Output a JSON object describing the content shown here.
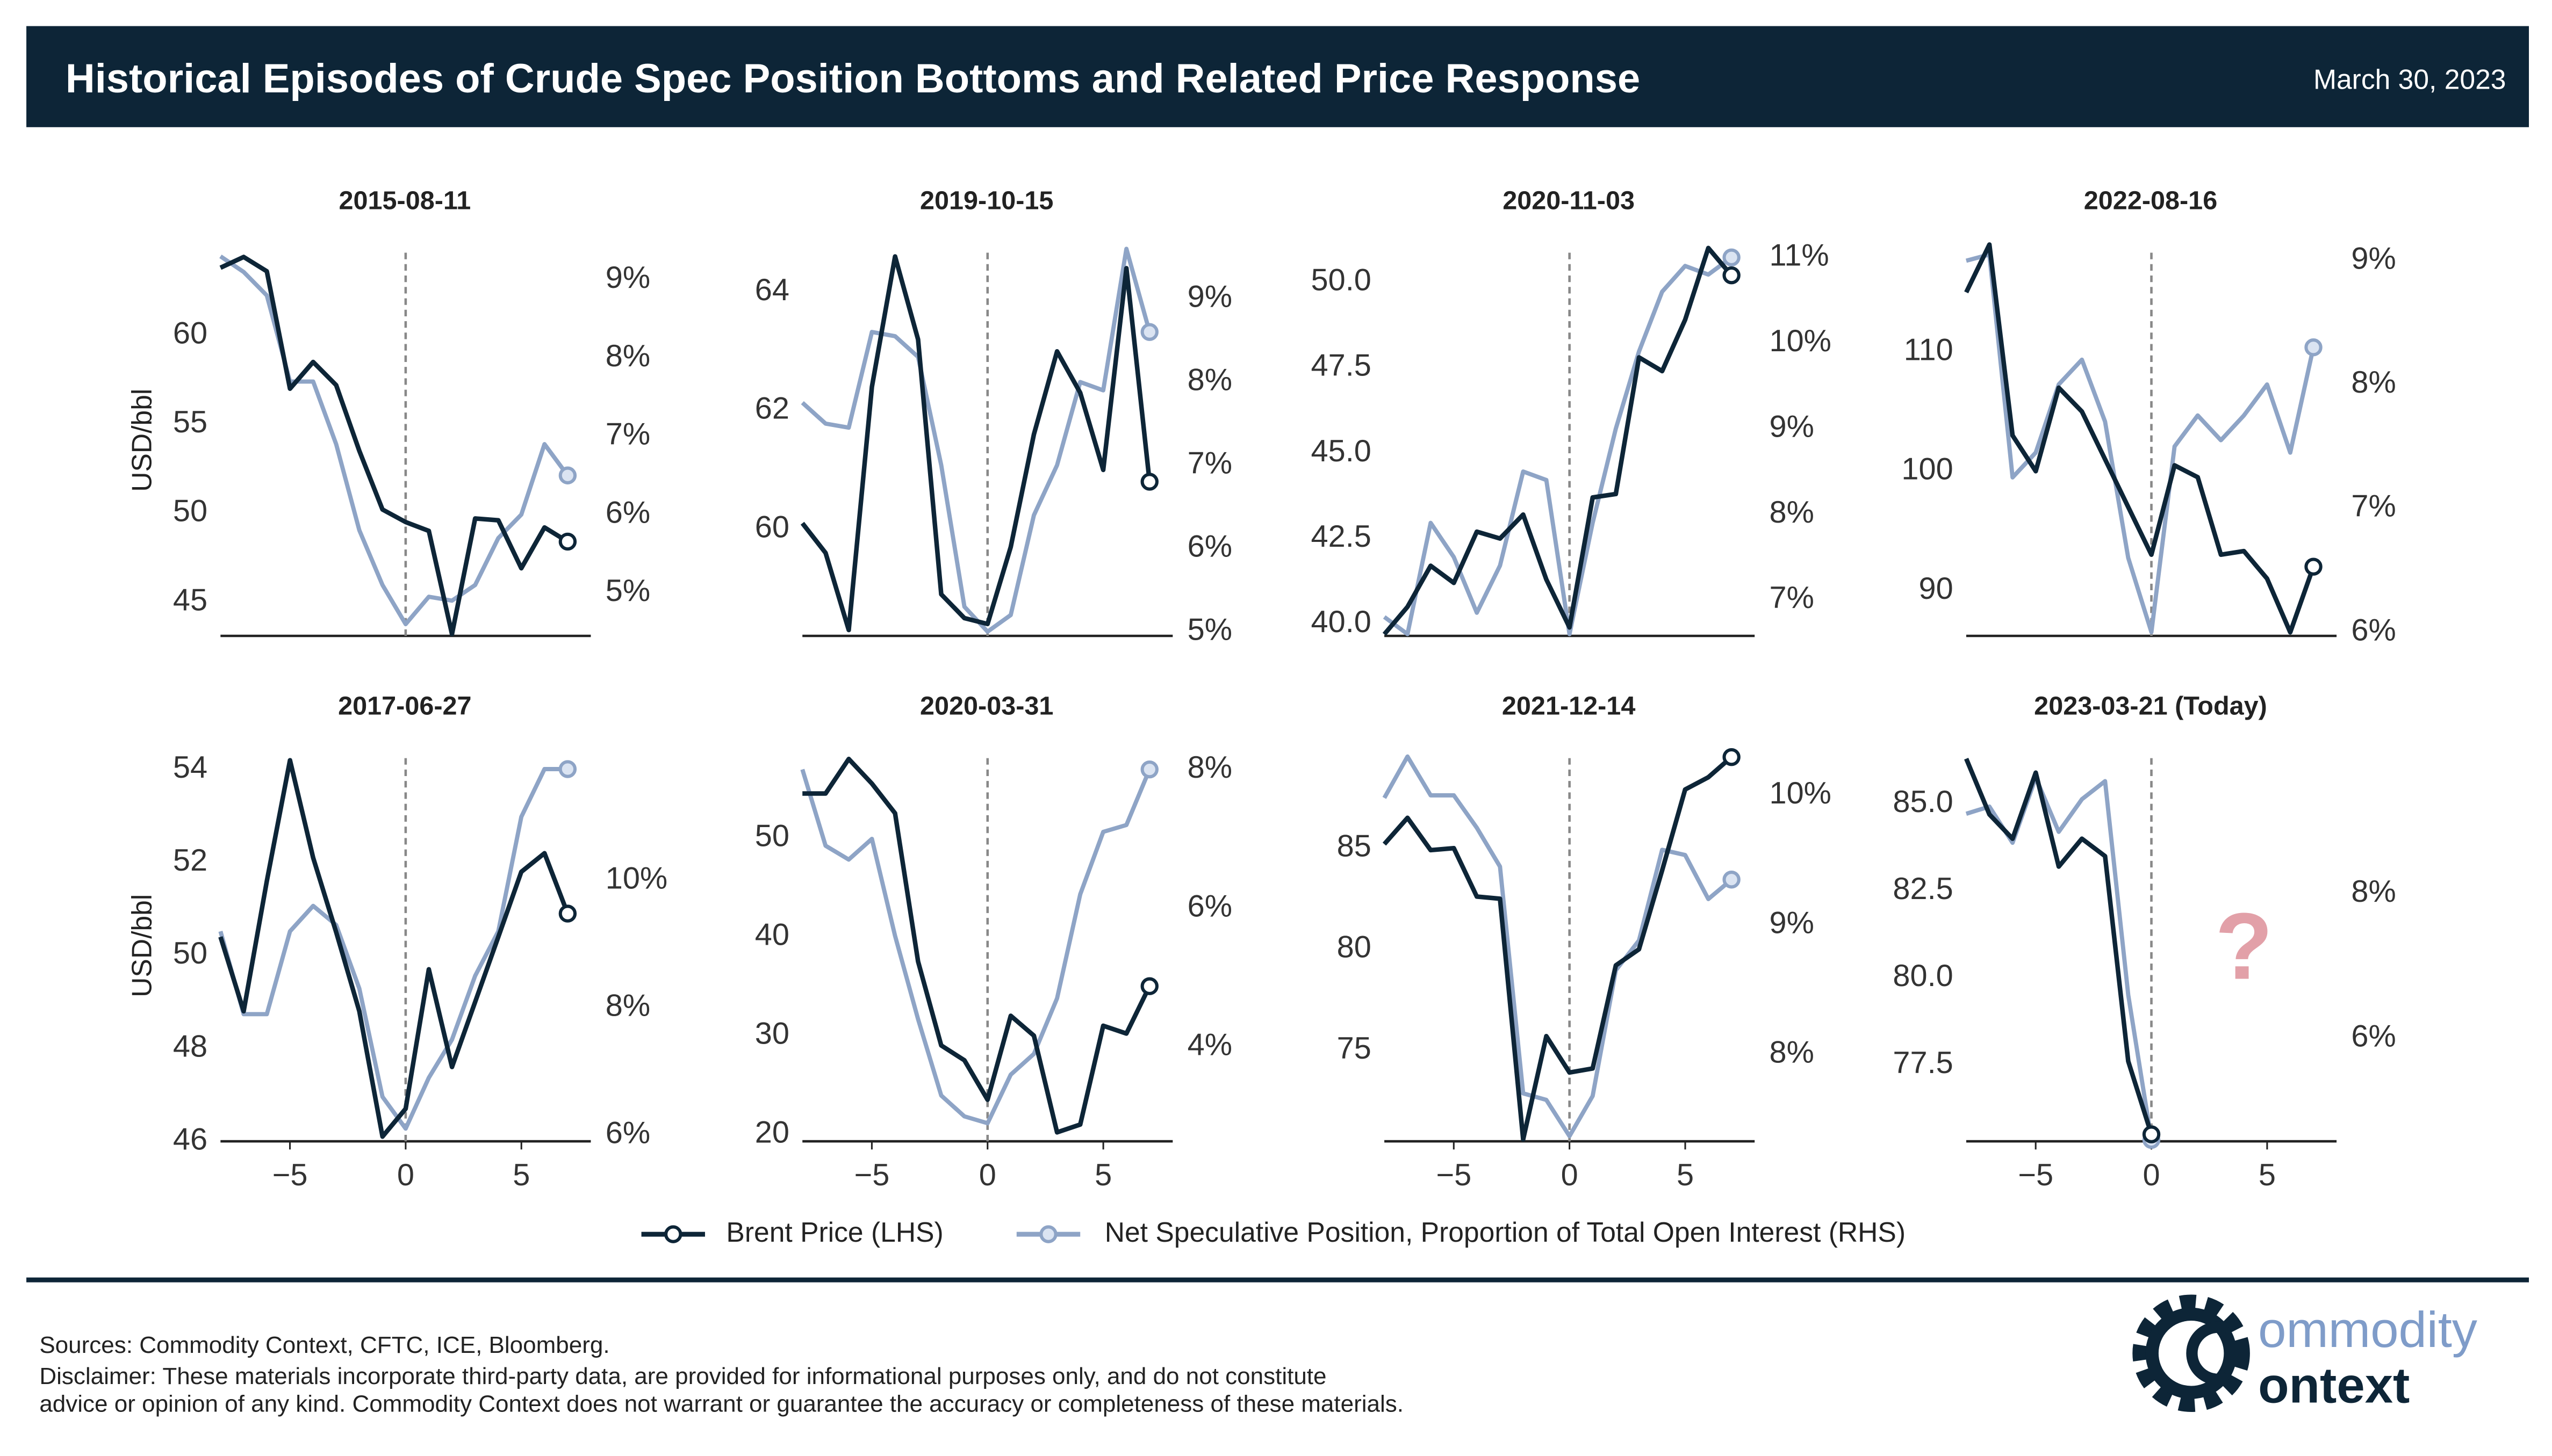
{
  "header": {
    "title": "Historical Episodes of Crude Spec Position Bottoms and Related Price Response",
    "date": "March 30, 2023"
  },
  "legend": [
    {
      "name": "Brent Price (LHS)",
      "color": "#0d2537"
    },
    {
      "name": "Net Speculative Position, Proportion of Total Open Interest (RHS)",
      "color": "#8ea4c6"
    }
  ],
  "chart_data": [
    {
      "type": "line",
      "title": "2015-08-11",
      "ylabel": "USD/bbl",
      "x": [
        -8,
        -7,
        -6,
        -5,
        -4,
        -3,
        -2,
        -1,
        0,
        1,
        2,
        3,
        4,
        5,
        6,
        7
      ],
      "xlim": [
        -8,
        8
      ],
      "vline": 0,
      "series": [
        {
          "axis": "y",
          "values": [
            63.8,
            64.4,
            63.6,
            57.0,
            58.5,
            57.2,
            53.5,
            50.2,
            49.5,
            49.0,
            43.2,
            49.7,
            49.6,
            46.9,
            49.2,
            48.4
          ]
        },
        {
          "axis": "y2",
          "values": [
            9.3,
            9.1,
            8.8,
            7.7,
            7.7,
            6.9,
            5.8,
            5.1,
            4.6,
            4.95,
            4.9,
            5.1,
            5.7,
            6.0,
            6.9,
            6.5
          ]
        }
      ],
      "ylim": [
        43.1,
        65.1
      ],
      "yticks": [
        45,
        50,
        55,
        60
      ],
      "y2lim": [
        4.45,
        9.45
      ],
      "y2ticks": [
        {
          "value": 5,
          "label": "5%"
        },
        {
          "value": 6,
          "label": "6%"
        },
        {
          "value": 7,
          "label": "7%"
        },
        {
          "value": 8,
          "label": "8%"
        },
        {
          "value": 9,
          "label": "9%"
        }
      ]
    },
    {
      "type": "line",
      "title": "2019-10-15",
      "x": [
        -8,
        -7,
        -6,
        -5,
        -4,
        -3,
        -2,
        -1,
        0,
        1,
        2,
        3,
        4,
        5,
        6,
        7
      ],
      "xlim": [
        -8,
        8
      ],
      "vline": 0,
      "series": [
        {
          "axis": "y",
          "values": [
            60.1,
            59.6,
            58.3,
            62.4,
            64.6,
            63.2,
            58.9,
            58.5,
            58.4,
            59.7,
            61.6,
            63.0,
            62.3,
            61.0,
            64.4,
            60.8
          ]
        },
        {
          "axis": "y2",
          "values": [
            7.75,
            7.5,
            7.45,
            8.6,
            8.55,
            8.3,
            7.0,
            5.3,
            5.0,
            5.2,
            6.4,
            7.0,
            8.0,
            7.9,
            9.6,
            8.6
          ]
        }
      ],
      "ylim": [
        58.2,
        64.8
      ],
      "yticks": [
        60,
        62,
        64
      ],
      "y2lim": [
        4.95,
        9.65
      ],
      "y2ticks": [
        {
          "value": 5,
          "label": "5%"
        },
        {
          "value": 6,
          "label": "6%"
        },
        {
          "value": 7,
          "label": "7%"
        },
        {
          "value": 8,
          "label": "8%"
        },
        {
          "value": 9,
          "label": "9%"
        }
      ]
    },
    {
      "type": "line",
      "title": "2020-11-03",
      "x": [
        -8,
        -7,
        -6,
        -5,
        -4,
        -3,
        -2,
        -1,
        0,
        1,
        2,
        3,
        4,
        5,
        6,
        7
      ],
      "xlim": [
        -8,
        8
      ],
      "vline": 0,
      "series": [
        {
          "axis": "y",
          "values": [
            39.7,
            40.5,
            41.7,
            41.2,
            42.7,
            42.5,
            43.2,
            41.3,
            39.9,
            43.7,
            43.8,
            47.8,
            47.4,
            48.9,
            51.0,
            50.2
          ]
        },
        {
          "axis": "y2",
          "values": [
            6.8,
            6.6,
            7.9,
            7.5,
            6.85,
            7.4,
            8.5,
            8.4,
            6.6,
            7.9,
            9.0,
            9.9,
            10.6,
            10.9,
            10.8,
            11.0
          ]
        }
      ],
      "ylim": [
        39.65,
        51.1
      ],
      "yticks": [
        {
          "value": 40,
          "label": "40.0"
        },
        42.5,
        {
          "value": 45,
          "label": "45.0"
        },
        47.5,
        {
          "value": 50,
          "label": "50.0"
        }
      ],
      "y2lim": [
        6.58,
        11.15
      ],
      "y2ticks": [
        {
          "value": 7,
          "label": "7%"
        },
        {
          "value": 8,
          "label": "8%"
        },
        {
          "value": 9,
          "label": "9%"
        },
        {
          "value": 10,
          "label": "10%"
        },
        {
          "value": 11,
          "label": "11%"
        }
      ]
    },
    {
      "type": "line",
      "title": "2022-08-16",
      "x": [
        -8,
        -7,
        -6,
        -5,
        -4,
        -3,
        -2,
        -1,
        0,
        1,
        2,
        3,
        4,
        5,
        6,
        7
      ],
      "xlim": [
        -8,
        8
      ],
      "vline": 0,
      "series": [
        {
          "axis": "y",
          "values": [
            115,
            119,
            103,
            100,
            107,
            105,
            101,
            97,
            93,
            100.5,
            99.5,
            93,
            93.3,
            91,
            86.5,
            92
          ]
        },
        {
          "axis": "y2",
          "values": [
            9.0,
            9.05,
            7.25,
            7.45,
            8.0,
            8.2,
            7.7,
            6.6,
            6.0,
            7.5,
            7.75,
            7.55,
            7.75,
            8.0,
            7.45,
            8.3
          ]
        }
      ],
      "ylim": [
        86.2,
        119.0
      ],
      "yticks": [
        90,
        100,
        110
      ],
      "y2lim": [
        5.97,
        9.13
      ],
      "y2ticks": [
        {
          "value": 6,
          "label": "6%"
        },
        {
          "value": 7,
          "label": "7%"
        },
        {
          "value": 8,
          "label": "8%"
        },
        {
          "value": 9,
          "label": "9%"
        }
      ]
    },
    {
      "type": "line",
      "title": "2017-06-27",
      "ylabel": "USD/bbl",
      "x": [
        -8,
        -7,
        -6,
        -5,
        -4,
        -3,
        -2,
        -1,
        0,
        1,
        2,
        3,
        4,
        5,
        6,
        7
      ],
      "xlim": [
        -8,
        8
      ],
      "vline": 0,
      "xticks": [
        {
          "value": -5,
          "label": "−5"
        },
        0,
        5
      ],
      "series": [
        {
          "axis": "y",
          "values": [
            50.4,
            48.8,
            51.6,
            54.2,
            52.1,
            50.5,
            48.8,
            46.1,
            46.7,
            49.7,
            47.6,
            49.0,
            50.4,
            51.8,
            52.2,
            50.9
          ]
        },
        {
          "axis": "y2",
          "values": [
            9.2,
            7.9,
            7.9,
            9.2,
            9.6,
            9.3,
            8.3,
            6.6,
            6.1,
            6.9,
            7.5,
            8.5,
            9.2,
            11.0,
            11.75,
            11.75
          ]
        }
      ],
      "ylim": [
        46.0,
        54.42
      ],
      "yticks": [
        46,
        48,
        50,
        52,
        54
      ],
      "y2lim": [
        5.9,
        12.05
      ],
      "y2ticks": [
        {
          "value": 6,
          "label": "6%"
        },
        {
          "value": 8,
          "label": "8%"
        },
        {
          "value": 10,
          "label": "10%"
        }
      ]
    },
    {
      "type": "line",
      "title": "2020-03-31",
      "x": [
        -8,
        -7,
        -6,
        -5,
        -4,
        -3,
        -2,
        -1,
        0,
        1,
        2,
        3,
        4,
        5,
        6,
        7
      ],
      "xlim": [
        -8,
        8
      ],
      "vline": 0,
      "xticks": [
        {
          "value": -5,
          "label": "−5"
        },
        0,
        5
      ],
      "series": [
        {
          "axis": "y",
          "values": [
            54.5,
            54.5,
            58,
            55.5,
            52.5,
            37.5,
            29,
            27.5,
            23.5,
            32,
            30,
            20.2,
            21,
            31,
            30.2,
            35
          ]
        },
        {
          "axis": "y2",
          "values": [
            8.0,
            6.9,
            6.7,
            7.0,
            5.6,
            4.4,
            3.3,
            3.0,
            2.9,
            3.6,
            3.9,
            4.7,
            6.2,
            7.1,
            7.2,
            8.0
          ]
        }
      ],
      "ylim": [
        19.3,
        58.9
      ],
      "yticks": [
        20,
        30,
        40,
        50
      ],
      "y2lim": [
        2.64,
        8.28
      ],
      "y2ticks": [
        {
          "value": 4,
          "label": "4%"
        },
        {
          "value": 6,
          "label": "6%"
        },
        {
          "value": 8,
          "label": "8%"
        }
      ]
    },
    {
      "type": "line",
      "title": "2021-12-14",
      "x": [
        -8,
        -7,
        -6,
        -5,
        -4,
        -3,
        -2,
        -1,
        0,
        1,
        2,
        3,
        4,
        5,
        6,
        7
      ],
      "xlim": [
        -8,
        8
      ],
      "vline": 0,
      "xticks": [
        {
          "value": -5,
          "label": "−5"
        },
        0,
        5
      ],
      "series": [
        {
          "axis": "y",
          "values": [
            85.2,
            86.5,
            84.9,
            85.0,
            82.6,
            82.5,
            70.6,
            75.7,
            73.9,
            74.1,
            79.2,
            80.0,
            83.9,
            87.9,
            88.5,
            89.5
          ]
        },
        {
          "axis": "y2",
          "values": [
            9.98,
            10.3,
            10.0,
            10.0,
            9.75,
            9.45,
            7.7,
            7.65,
            7.37,
            7.68,
            8.65,
            8.88,
            9.58,
            9.54,
            9.2,
            9.35
          ]
        }
      ],
      "ylim": [
        70.5,
        89.85
      ],
      "yticks": [
        75,
        80,
        85
      ],
      "y2lim": [
        7.33,
        10.35
      ],
      "y2ticks": [
        {
          "value": 8,
          "label": "8%"
        },
        {
          "value": 9,
          "label": "9%"
        },
        {
          "value": 10,
          "label": "10%"
        }
      ]
    },
    {
      "type": "line",
      "title": "2023-03-21 (Today)",
      "annotation": "?",
      "x": [
        -8,
        -7,
        -6,
        -5,
        -4,
        -3,
        -2,
        -1,
        0
      ],
      "xlim": [
        -8,
        8
      ],
      "vline": 0,
      "xticks": [
        {
          "value": -5,
          "label": "−5"
        },
        0,
        5
      ],
      "series": [
        {
          "axis": "y",
          "values": [
            86.3,
            84.7,
            84.0,
            85.9,
            83.2,
            84.0,
            83.5,
            77.6,
            75.5
          ]
        },
        {
          "axis": "y2",
          "values": [
            9.1,
            9.2,
            8.7,
            9.6,
            8.85,
            9.3,
            9.55,
            6.6,
            4.6
          ]
        }
      ],
      "ylim": [
        75.3,
        86.55
      ],
      "yticks": [
        77.5,
        {
          "value": 80,
          "label": "80.0"
        },
        82.5,
        {
          "value": 85,
          "label": "85.0"
        }
      ],
      "y2lim": [
        4.58,
        9.98
      ],
      "y2ticks": [
        {
          "value": 6,
          "label": "6%"
        },
        {
          "value": 8,
          "label": "8%"
        }
      ]
    }
  ],
  "footer": {
    "sources": "Sources: Commodity Context, CFTC, ICE, Bloomberg.",
    "disclaimer": [
      "Disclaimer: These materials incorporate third-party data, are provided for informational purposes only, and do not constitute",
      "advice or opinion of any kind. Commodity Context does not warrant or guarantee the accuracy or completeness of these materials."
    ]
  },
  "logo": {
    "top": "ommodity",
    "bottom": "ontext"
  }
}
